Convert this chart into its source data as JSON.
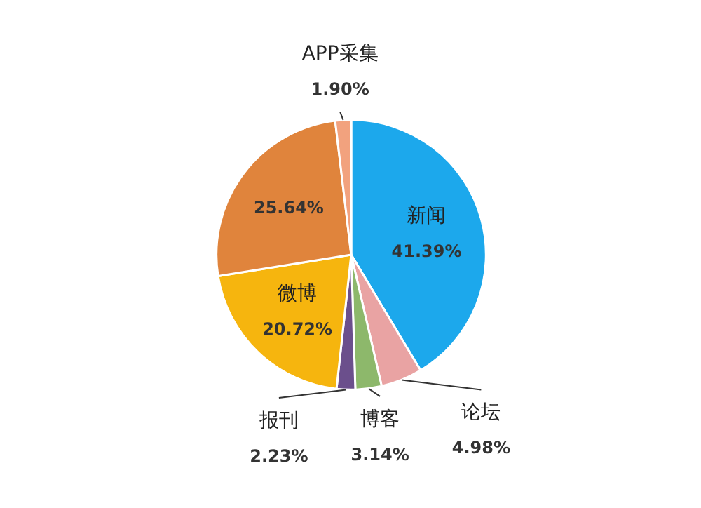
{
  "chart_data": {
    "type": "pie",
    "categories": [
      "新闻",
      "论坛",
      "博客",
      "报刊",
      "微博",
      null,
      "APP采集"
    ],
    "values": [
      41.39,
      4.98,
      3.14,
      2.23,
      20.72,
      25.64,
      1.9
    ],
    "value_labels": [
      "41.39%",
      "4.98%",
      "3.14%",
      "2.23%",
      "20.72%",
      "25.64%",
      "1.90%"
    ],
    "colors": [
      "#1ca8ec",
      "#e9a3a3",
      "#8db86b",
      "#6b4f8c",
      "#f6b50e",
      "#e0843c",
      "#f2a27e"
    ]
  }
}
